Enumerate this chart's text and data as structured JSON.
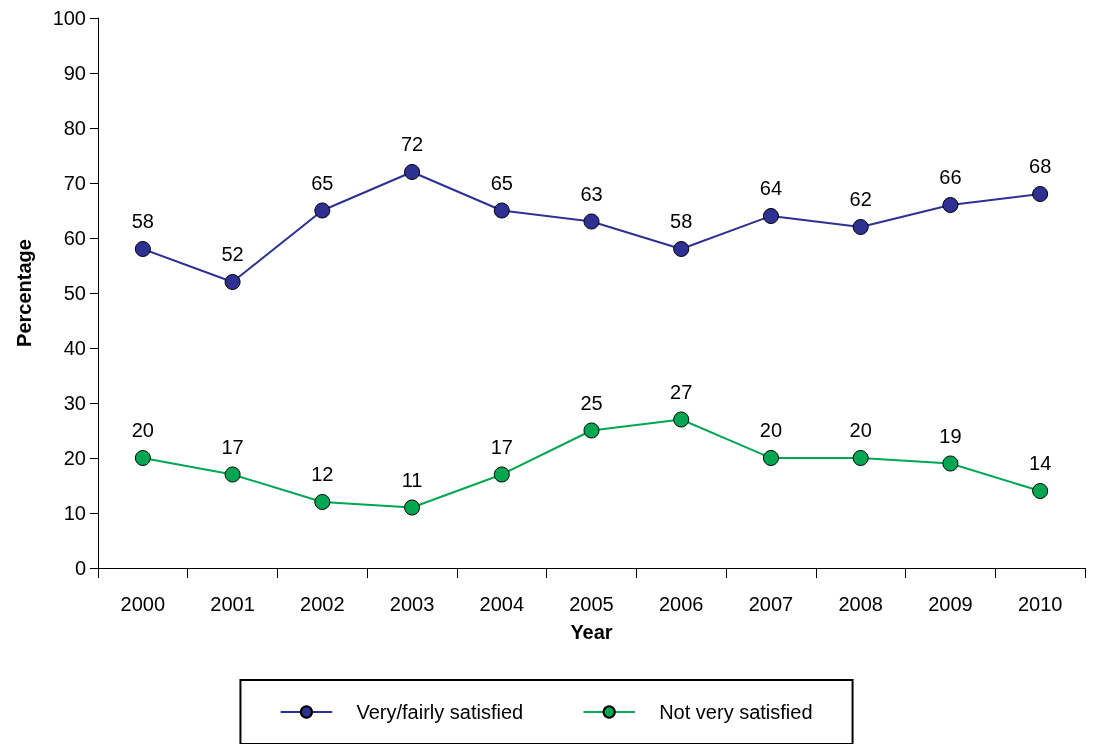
{
  "chart_data": {
    "type": "line",
    "xlabel": "Year",
    "ylabel": "Percentage",
    "categories": [
      "2000",
      "2001",
      "2002",
      "2003",
      "2004",
      "2005",
      "2006",
      "2007",
      "2008",
      "2009",
      "2010"
    ],
    "series": [
      {
        "name": "Very/fairly satisfied",
        "color": "#2e3192",
        "values": [
          58,
          52,
          65,
          72,
          65,
          63,
          58,
          64,
          62,
          66,
          68
        ]
      },
      {
        "name": "Not very satisfied",
        "color": "#00a651",
        "values": [
          20,
          17,
          12,
          11,
          17,
          25,
          27,
          20,
          20,
          19,
          14
        ]
      }
    ],
    "ylim": [
      0,
      100
    ],
    "yticks": [
      0,
      10,
      20,
      30,
      40,
      50,
      60,
      70,
      80,
      90,
      100
    ],
    "data_labels": true,
    "legend": "bottom",
    "marker": "circle",
    "line_style": "solid",
    "grid": false
  }
}
